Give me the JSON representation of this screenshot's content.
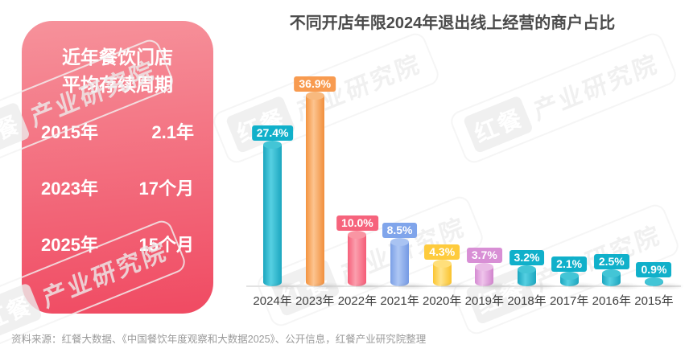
{
  "watermark": {
    "brand": "红餐",
    "org": "产业研究院"
  },
  "card": {
    "title_line1": "近年餐饮门店",
    "title_line2": "平均存续周期",
    "rows": [
      {
        "label": "2015年",
        "value": "2.1年"
      },
      {
        "label": "2023年",
        "value": "17个月"
      },
      {
        "label": "2025年",
        "value": "15个月"
      }
    ],
    "gradient_top": "#f6929b",
    "gradient_bottom": "#f04a62"
  },
  "chart_data": {
    "type": "bar",
    "title": "不同开店年限2024年退出线上经营的商户占比",
    "categories": [
      "2024年",
      "2023年",
      "2022年",
      "2021年",
      "2020年",
      "2019年",
      "2018年",
      "2017年",
      "2016年",
      "2015年"
    ],
    "values": [
      27.4,
      36.9,
      10.0,
      8.5,
      4.3,
      3.7,
      3.2,
      2.1,
      2.5,
      0.9
    ],
    "labels": [
      "27.4%",
      "36.9%",
      "10.0%",
      "8.5%",
      "4.3%",
      "3.7%",
      "3.2%",
      "2.1%",
      "2.5%",
      "0.9%"
    ],
    "series_colors": [
      "teal",
      "orange",
      "pink",
      "blue",
      "yellow",
      "orchid",
      "teal",
      "teal",
      "teal",
      "teal"
    ],
    "palette": {
      "teal": {
        "badge": "#10b0ca",
        "edge": "#1ba6bf",
        "mid": "#56d0e2",
        "edge2": "#1ba6bf",
        "cap": "#43c5d6"
      },
      "orange": {
        "badge": "#f89b50",
        "edge": "#f4933f",
        "mid": "#fcc490",
        "edge2": "#f18f3c",
        "cap": "#f8b97e"
      },
      "pink": {
        "badge": "#f6637c",
        "edge": "#f6607a",
        "mid": "#fb9fae",
        "edge2": "#f55b76",
        "cap": "#f995a3"
      },
      "blue": {
        "badge": "#80a5eb",
        "edge": "#7b9fe6",
        "mid": "#aec7f4",
        "edge2": "#7499e4",
        "cap": "#a9c3f2"
      },
      "yellow": {
        "badge": "#fecb3d",
        "edge": "#fbc531",
        "mid": "#ffe48c",
        "edge2": "#fac22c",
        "cap": "#ffdf7b"
      },
      "orchid": {
        "badge": "#d88fd5",
        "edge": "#d58ad2",
        "mid": "#efc4eb",
        "edge2": "#d184cd",
        "cap": "#eabce6"
      }
    },
    "unit": "%",
    "ylim": [
      0,
      40
    ],
    "grid": false,
    "legend": false,
    "xlabel": "",
    "ylabel": ""
  },
  "footer": {
    "source": "资料来源：红餐大数据、《中国餐饮年度观察和大数据2025》、公开信息，红餐产业研究院整理"
  }
}
